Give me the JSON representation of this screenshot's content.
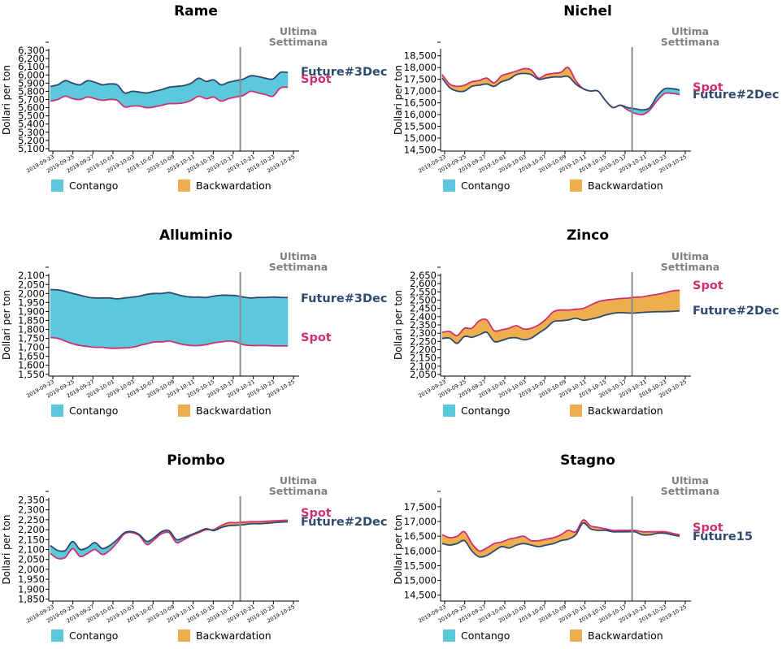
{
  "colors": {
    "contango": "#5bc8dc",
    "backwardation": "#efae4e",
    "future": "#2e4a6e",
    "spot": "#d02f72",
    "week": "#8c8c8c"
  },
  "legend": {
    "contango": "Contango",
    "backwardation": "Backwardation"
  },
  "week_label": [
    "Ultima",
    "Settimana"
  ],
  "ylabel": "Dollari per ton",
  "x_dates": [
    "2019-09-23",
    "2019-09-25",
    "2019-09-27",
    "2019-10-01",
    "2019-10-03",
    "2019-10-07",
    "2019-10-09",
    "2019-10-11",
    "2019-10-15",
    "2019-10-17",
    "2019-10-21",
    "2019-10-23",
    "2019-10-25"
  ],
  "chart_data": [
    {
      "type": "area",
      "title": "Rame",
      "ylabel": "Dollari per ton",
      "ylim": [
        5070,
        6320
      ],
      "yticks": [
        "5,100",
        "5,200",
        "5,300",
        "5,400",
        "5,500",
        "5,600",
        "5,700",
        "5,800",
        "5,900",
        "6,000",
        "6,100",
        "6,200",
        "6,300"
      ],
      "future_label": "Future#3Dec",
      "spot_label": "Spot",
      "future": [
        5860,
        5880,
        5930,
        5900,
        5880,
        5930,
        5910,
        5880,
        5890,
        5880,
        5780,
        5800,
        5790,
        5780,
        5800,
        5820,
        5850,
        5860,
        5870,
        5900,
        5960,
        5920,
        5940,
        5880,
        5910,
        5930,
        5950,
        5990,
        5980,
        5960,
        5950,
        6030,
        6030
      ],
      "spot": [
        5680,
        5700,
        5740,
        5710,
        5700,
        5730,
        5710,
        5690,
        5700,
        5690,
        5610,
        5620,
        5620,
        5600,
        5610,
        5630,
        5650,
        5650,
        5660,
        5690,
        5740,
        5710,
        5730,
        5680,
        5710,
        5730,
        5750,
        5800,
        5780,
        5760,
        5740,
        5840,
        5850
      ]
    },
    {
      "type": "area",
      "title": "Nichel",
      "ylabel": "Dollari per ton",
      "ylim": [
        14450,
        18800
      ],
      "yticks": [
        "14,500",
        "15,000",
        "15,500",
        "16,000",
        "16,500",
        "17,000",
        "17,500",
        "18,000",
        "18,500"
      ],
      "future_label": "Future#2Dec",
      "spot_label": "Spot",
      "future": [
        17550,
        17150,
        17000,
        17000,
        17200,
        17250,
        17300,
        17200,
        17400,
        17500,
        17700,
        17750,
        17700,
        17500,
        17550,
        17600,
        17600,
        17620,
        17300,
        17100,
        17000,
        17000,
        16600,
        16300,
        16400,
        16300,
        16250,
        16200,
        16300,
        16800,
        17100,
        17100,
        17050
      ],
      "spot": [
        17700,
        17300,
        17200,
        17250,
        17400,
        17450,
        17550,
        17350,
        17650,
        17750,
        17850,
        17950,
        17900,
        17550,
        17700,
        17750,
        17800,
        18000,
        17450,
        17100,
        17000,
        17000,
        16600,
        16300,
        16400,
        16200,
        16050,
        16000,
        16200,
        16600,
        16900,
        16900,
        16850
      ]
    },
    {
      "type": "area",
      "title": "Alluminio",
      "ylabel": "Dollari per ton",
      "ylim": [
        1540,
        2110
      ],
      "yticks": [
        "1,550",
        "1,600",
        "1,650",
        "1,700",
        "1,750",
        "1,800",
        "1,850",
        "1,900",
        "1,950",
        "2,000",
        "2,050",
        "2,100"
      ],
      "future_label": "Future#3Dec",
      "spot_label": "Spot",
      "future": [
        2022,
        2020,
        2012,
        2000,
        1990,
        1980,
        1975,
        1975,
        1975,
        1970,
        1975,
        1980,
        1985,
        1995,
        2000,
        2000,
        2005,
        1995,
        1985,
        1980,
        1980,
        1978,
        1985,
        1990,
        1990,
        1988,
        1980,
        1975,
        1978,
        1978,
        1980,
        1978,
        1978
      ],
      "spot": [
        1755,
        1750,
        1735,
        1720,
        1710,
        1705,
        1700,
        1700,
        1695,
        1695,
        1697,
        1700,
        1710,
        1720,
        1730,
        1730,
        1735,
        1725,
        1715,
        1710,
        1710,
        1715,
        1725,
        1730,
        1735,
        1730,
        1715,
        1710,
        1710,
        1710,
        1708,
        1708,
        1708
      ]
    },
    {
      "type": "area",
      "title": "Zinco",
      "ylabel": "Dollari per ton",
      "ylim": [
        2040,
        2660
      ],
      "yticks": [
        "2,050",
        "2,100",
        "2,150",
        "2,200",
        "2,250",
        "2,300",
        "2,350",
        "2,400",
        "2,450",
        "2,500",
        "2,550",
        "2,600",
        "2,650"
      ],
      "future_label": "Future#2Dec",
      "spot_label": "Spot",
      "future": [
        2268,
        2270,
        2238,
        2280,
        2275,
        2290,
        2305,
        2250,
        2255,
        2270,
        2272,
        2260,
        2270,
        2300,
        2330,
        2370,
        2375,
        2380,
        2390,
        2378,
        2385,
        2395,
        2410,
        2420,
        2425,
        2422,
        2422,
        2426,
        2428,
        2430,
        2430,
        2432,
        2435
      ],
      "spot": [
        2305,
        2310,
        2285,
        2330,
        2330,
        2375,
        2380,
        2315,
        2320,
        2330,
        2345,
        2325,
        2330,
        2350,
        2385,
        2430,
        2440,
        2440,
        2445,
        2450,
        2470,
        2490,
        2500,
        2505,
        2510,
        2512,
        2518,
        2520,
        2528,
        2535,
        2545,
        2556,
        2560
      ]
    },
    {
      "type": "area",
      "title": "Piombo",
      "ylabel": "Dollari per ton",
      "ylim": [
        1840,
        2360
      ],
      "yticks": [
        "1,850",
        "1,900",
        "1,950",
        "2,000",
        "2,050",
        "2,100",
        "2,150",
        "2,200",
        "2,250",
        "2,300",
        "2,350"
      ],
      "future_label": "Future#2Dec",
      "spot_label": "Spot",
      "future": [
        2120,
        2095,
        2095,
        2140,
        2100,
        2110,
        2135,
        2105,
        2120,
        2150,
        2185,
        2190,
        2175,
        2140,
        2160,
        2190,
        2195,
        2150,
        2160,
        2175,
        2190,
        2205,
        2195,
        2210,
        2220,
        2222,
        2225,
        2230,
        2230,
        2232,
        2235,
        2238,
        2240
      ],
      "spot": [
        2080,
        2055,
        2060,
        2105,
        2065,
        2080,
        2100,
        2075,
        2095,
        2135,
        2180,
        2185,
        2170,
        2125,
        2150,
        2180,
        2185,
        2135,
        2150,
        2170,
        2185,
        2200,
        2200,
        2220,
        2235,
        2235,
        2238,
        2240,
        2240,
        2242,
        2244,
        2246,
        2248
      ]
    },
    {
      "type": "area",
      "title": "Stagno",
      "ylabel": "Dollari per ton",
      "ylim": [
        14300,
        17800
      ],
      "yticks": [
        "14,500",
        "15,000",
        "15,500",
        "16,000",
        "16,500",
        "17,000",
        "17,500"
      ],
      "future_label": "Future15",
      "spot_label": "Spot",
      "future": [
        16250,
        16200,
        16250,
        16350,
        16000,
        15800,
        15850,
        16000,
        16150,
        16100,
        16200,
        16250,
        16200,
        16150,
        16200,
        16250,
        16350,
        16400,
        16550,
        16950,
        16750,
        16700,
        16700,
        16650,
        16650,
        16650,
        16650,
        16550,
        16550,
        16600,
        16600,
        16550,
        16500
      ],
      "spot": [
        16550,
        16450,
        16500,
        16650,
        16250,
        16000,
        16100,
        16250,
        16300,
        16400,
        16450,
        16500,
        16350,
        16350,
        16400,
        16450,
        16550,
        16700,
        16650,
        17050,
        16850,
        16800,
        16750,
        16700,
        16700,
        16700,
        16700,
        16650,
        16650,
        16650,
        16650,
        16600,
        16550
      ]
    }
  ]
}
